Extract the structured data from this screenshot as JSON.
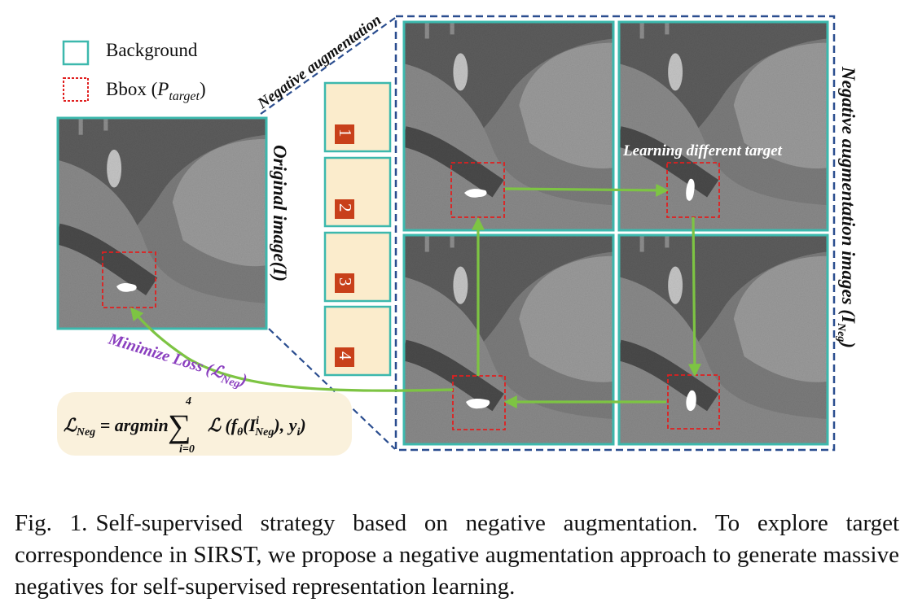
{
  "legend": {
    "background": "Background",
    "bbox_prefix": "Bbox (",
    "bbox_symbol": "P",
    "bbox_subscript": "target",
    "bbox_suffix": ")"
  },
  "labels": {
    "original_image": "Original image(I)",
    "negative_augmentation": "Negative augmentation",
    "negative_images_main": "Negative augmentation images (",
    "negative_images_symbol": "I",
    "negative_images_subscript": "Neg",
    "negative_images_close": ")",
    "learning_different_target": "Learning different target",
    "minimize_loss": "Minimize Loss (",
    "minimize_loss_symbol": "ℒ",
    "minimize_loss_subscript": "Neg",
    "minimize_loss_close": ")"
  },
  "steps": [
    "1",
    "2",
    "3",
    "4"
  ],
  "formula": {
    "lhs": "ℒ",
    "lhs_sub": "Neg",
    "eq": " = argmin",
    "sum_top": "4",
    "sum_bottom": "i=0",
    "body_prefix": "ℒ (f",
    "theta": "θ",
    "body_mid": "(I",
    "sup_i": "i",
    "sub_neg": "Neg",
    "body_end": "), y",
    "y_sub": "i",
    "close": ")"
  },
  "caption": {
    "label": "Fig. 1.",
    "text": "Self-supervised strategy based on negative augmentation. To explore target correspondence in SIRST, we propose a negative augmentation approach to generate massive negatives for self-supervised representation learning."
  },
  "colors": {
    "teal": "#3cb8ad",
    "bbox_red": "#e02020",
    "dash_blue": "#2a4d8f",
    "arrow_green": "#7dc443",
    "loss_purple": "#8a3fbf",
    "step_fill": "#fbeccc",
    "step_badge": "#c8401a",
    "formula_bg": "#faf1dc"
  }
}
